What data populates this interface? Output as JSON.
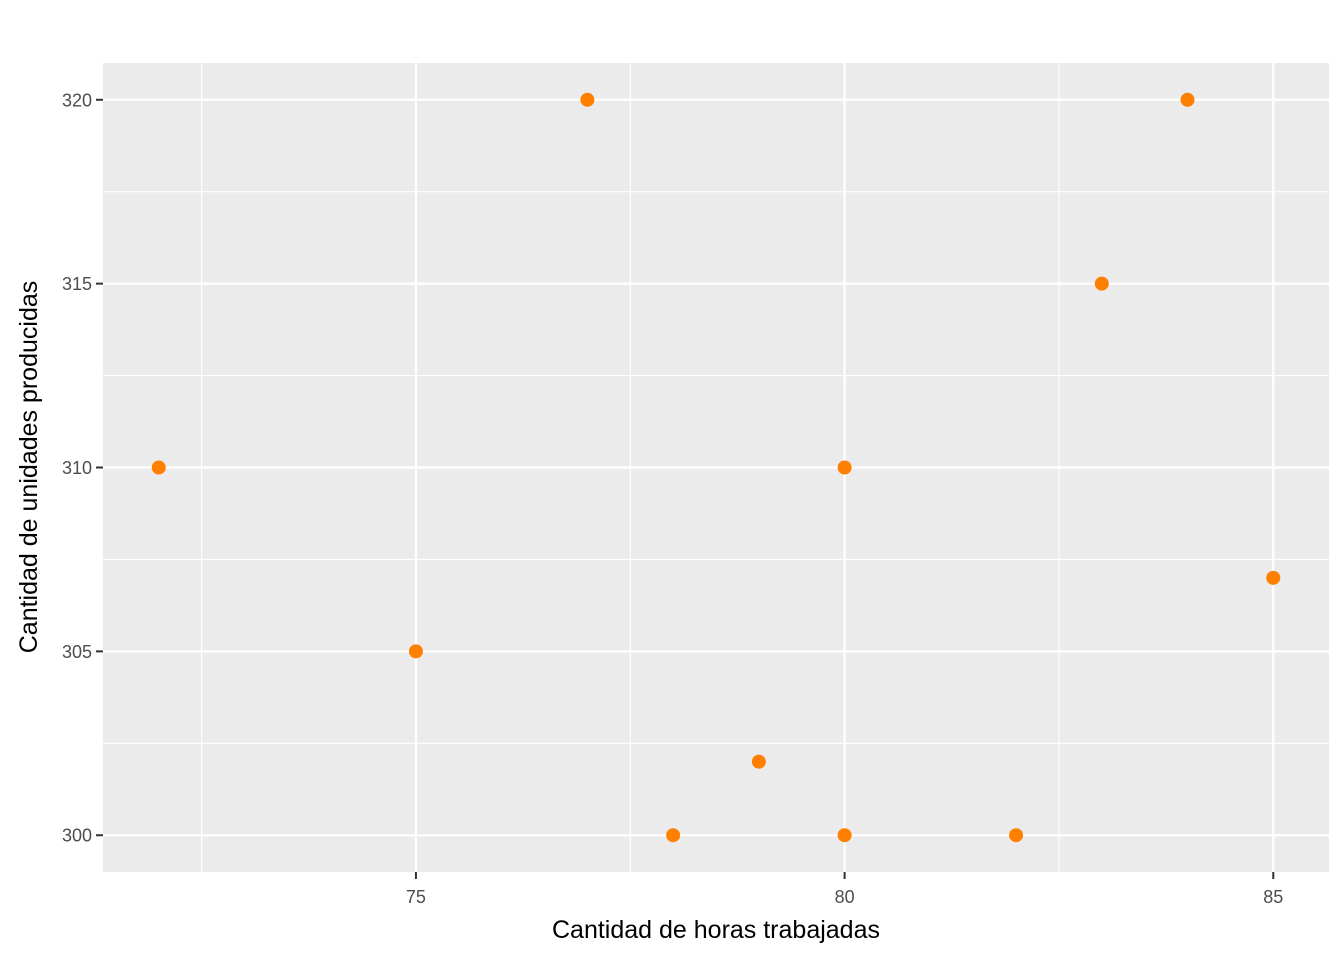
{
  "chart_data": {
    "type": "scatter",
    "title": "",
    "xlabel": "Cantidad de horas trabajadas",
    "ylabel": "Cantidad de unidades producidas",
    "xlim": [
      71.35,
      85.65
    ],
    "ylim": [
      299.0,
      321.0
    ],
    "x_ticks": [
      75,
      80,
      85
    ],
    "x_minor_ticks": [
      72.5,
      77.5,
      82.5
    ],
    "y_ticks": [
      300,
      305,
      310,
      315,
      320
    ],
    "y_minor_ticks": [
      302.5,
      307.5,
      312.5,
      317.5
    ],
    "x_tick_labels": [
      "75",
      "80",
      "85"
    ],
    "y_tick_labels": [
      "300",
      "305",
      "310",
      "315",
      "320"
    ],
    "grid": true,
    "series": [
      {
        "color": "#FF7F00",
        "points": [
          {
            "x": 72,
            "y": 310
          },
          {
            "x": 75,
            "y": 305
          },
          {
            "x": 77,
            "y": 320
          },
          {
            "x": 78,
            "y": 300
          },
          {
            "x": 79,
            "y": 302
          },
          {
            "x": 80,
            "y": 310
          },
          {
            "x": 80,
            "y": 300
          },
          {
            "x": 82,
            "y": 300
          },
          {
            "x": 83,
            "y": 315
          },
          {
            "x": 84,
            "y": 320
          },
          {
            "x": 85,
            "y": 307
          }
        ]
      }
    ],
    "colors": {
      "panel_background": "#EBEBEB",
      "grid_major": "#FFFFFF",
      "grid_minor": "#FFFFFF",
      "tick_text": "#4D4D4D",
      "axis_title": "#000000"
    }
  }
}
